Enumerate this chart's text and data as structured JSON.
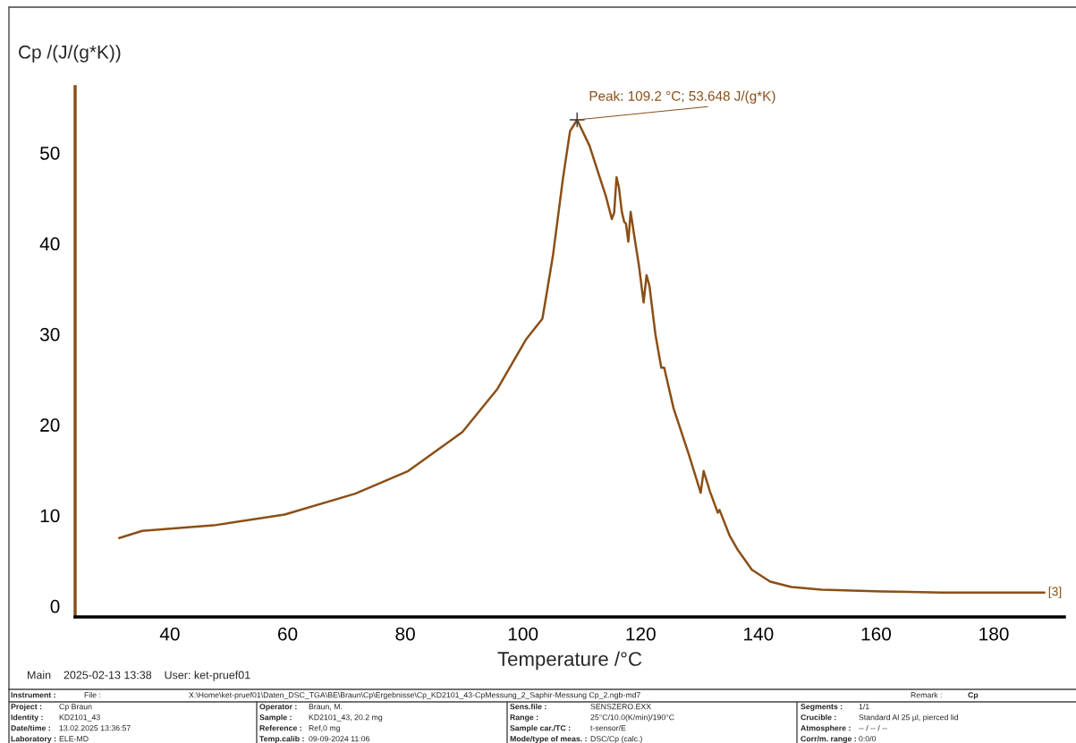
{
  "chart_data": {
    "type": "line",
    "xlabel": "Temperature /°C",
    "ylabel": "Cp /(J/(g*K))",
    "xlim": [
      23.9,
      192
    ],
    "ylim": [
      -1.2,
      57.3
    ],
    "xticks": [
      40,
      60,
      80,
      100,
      120,
      140,
      160,
      180
    ],
    "yticks": [
      0,
      10,
      20,
      30,
      40,
      50
    ],
    "grid": false,
    "legend": false,
    "marker": "none",
    "line_style": "solid",
    "series": [
      {
        "color": "#8b4f16",
        "x": [
          31.4,
          35.3,
          47.4,
          59.5,
          71.5,
          80.5,
          89.7,
          95.6,
          100.5,
          103.3,
          103.9,
          105.1,
          106.8,
          108.0,
          109.2,
          111.3,
          112.8,
          114.1,
          115.1,
          115.5,
          115.9,
          116.3,
          116.8,
          117.2,
          117.5,
          117.9,
          118.3,
          118.9,
          119.7,
          120.5,
          121.0,
          121.5,
          122.5,
          123.5,
          124.0,
          125.6,
          128.1,
          130.2,
          130.7,
          131.8,
          133.1,
          133.4,
          135.1,
          136.4,
          138.9,
          142.0,
          145.6,
          150.7,
          161.0,
          171.2,
          181.5,
          188.6
        ],
        "values": [
          7.5,
          8.3,
          8.9,
          10.1,
          12.4,
          14.9,
          19.2,
          23.9,
          29.4,
          31.7,
          34.0,
          38.7,
          47.2,
          52.4,
          53.648,
          50.8,
          47.8,
          45.2,
          42.7,
          43.4,
          47.3,
          46.2,
          43.5,
          42.4,
          42.2,
          40.2,
          43.5,
          40.9,
          37.6,
          33.5,
          36.5,
          35.3,
          30.0,
          26.3,
          26.3,
          21.8,
          16.9,
          12.5,
          14.9,
          12.6,
          10.3,
          10.6,
          7.8,
          6.3,
          4.0,
          2.7,
          2.1,
          1.8,
          1.6,
          1.5,
          1.5,
          1.5
        ]
      }
    ],
    "annotations": [
      {
        "text": "Peak: 109.2 °C; 53.648 J/(g*K)",
        "x": 109.2,
        "y": 53.648
      },
      {
        "text": "[3]",
        "x": 188.6,
        "y": 1.5
      },
      "Main    2025-02-13 13:38    User: ket-pruef01",
      "Instrument :",
      "File :",
      "X:\\Home\\ket-pruef01\\Daten_DSC_TGA\\BE\\Braun\\Cp\\Ergebnisse\\Cp_KD2101_43-CpMessung_2_Saphir-Messung Cp_2.ngb-md7",
      "Remark :",
      "Cp",
      "Project :",
      "Cp Braun",
      "Identity :",
      "KD2101_43",
      "Date/time :",
      "13.02.2025 13:36:57",
      "Laboratory :",
      "ELE-MD",
      "Operator :",
      "Braun, M.",
      "Sample :",
      "KD2101_43, 20.2 mg",
      "Reference :",
      "Ref,0 mg",
      "Temp.calib :",
      "09-09-2024 11:06",
      "Sens.file :",
      "SENSZERO.EXX",
      "Range :",
      "25°C/10.0(K/min)/190°C",
      "Sample car./TC :",
      "t-sensor/E",
      "Mode/type of meas. :",
      "DSC/Cp (calc.)",
      "Segments :",
      "1/1",
      "Crucible :",
      "Standard Al 25 µl, pierced lid",
      "Atmosphere :",
      "-- / -- / --",
      "Corr/m. range :",
      "0:0/0"
    ]
  }
}
